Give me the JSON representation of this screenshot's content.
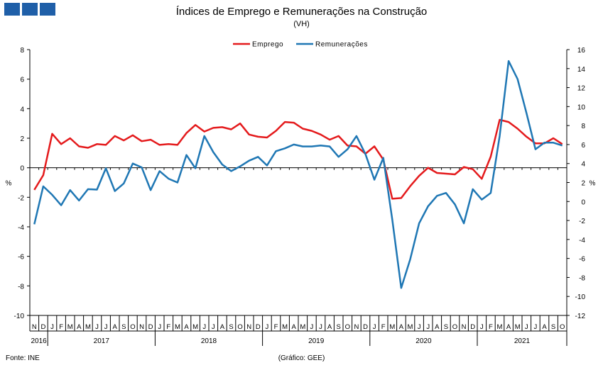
{
  "header": {
    "title": "Índices de Emprego e Remunerações na Construção",
    "subtitle": "(VH)"
  },
  "footer": {
    "source": "Fonte: INE",
    "credit": "(Gráfico: GEE)"
  },
  "colors": {
    "emprego": "#e41a1c",
    "remuneracoes": "#1f77b4",
    "logo": "#1f5fa8"
  },
  "chart_data": {
    "type": "line",
    "legend_position": "top-center",
    "y_left": {
      "label": "%",
      "min": -10,
      "max": 8,
      "ticks": [
        -10,
        -8,
        -6,
        -4,
        -2,
        0,
        2,
        4,
        6,
        8
      ]
    },
    "y_right": {
      "label": "%",
      "min": -12,
      "max": 16,
      "ticks": [
        -12,
        -10,
        -8,
        -6,
        -4,
        -2,
        0,
        2,
        4,
        6,
        8,
        10,
        12,
        14,
        16
      ]
    },
    "months": [
      "N",
      "D",
      "J",
      "F",
      "M",
      "A",
      "M",
      "J",
      "J",
      "A",
      "S",
      "O",
      "N",
      "D",
      "J",
      "F",
      "M",
      "A",
      "M",
      "J",
      "J",
      "A",
      "S",
      "O",
      "N",
      "D",
      "J",
      "F",
      "M",
      "A",
      "M",
      "J",
      "J",
      "A",
      "S",
      "O",
      "N",
      "D",
      "J",
      "F",
      "M",
      "A",
      "M",
      "J",
      "J",
      "A",
      "S",
      "O",
      "N",
      "D",
      "J",
      "F",
      "M",
      "A",
      "M",
      "J",
      "J",
      "A",
      "S",
      "O"
    ],
    "years": [
      {
        "label": "2016",
        "start": 0,
        "end": 1
      },
      {
        "label": "2017",
        "start": 2,
        "end": 13
      },
      {
        "label": "2018",
        "start": 14,
        "end": 25
      },
      {
        "label": "2019",
        "start": 26,
        "end": 37
      },
      {
        "label": "2020",
        "start": 38,
        "end": 49
      },
      {
        "label": "2021",
        "start": 50,
        "end": 59
      }
    ],
    "series": [
      {
        "name": "Emprego",
        "axis": "left",
        "values": [
          -1.5,
          -0.5,
          2.3,
          1.6,
          2.0,
          1.45,
          1.35,
          1.6,
          1.55,
          2.15,
          1.85,
          2.2,
          1.8,
          1.9,
          1.55,
          1.6,
          1.55,
          2.35,
          2.9,
          2.45,
          2.7,
          2.75,
          2.6,
          3.0,
          2.25,
          2.1,
          2.05,
          2.5,
          3.1,
          3.05,
          2.65,
          2.5,
          2.25,
          1.9,
          2.15,
          1.5,
          1.45,
          0.95,
          1.45,
          0.55,
          -2.1,
          -2.05,
          -1.25,
          -0.55,
          0.0,
          -0.35,
          -0.4,
          -0.45,
          0.05,
          -0.1,
          -0.75,
          0.75,
          3.25,
          3.1,
          2.65,
          2.1,
          1.65,
          1.65,
          2.0,
          1.6
        ]
      },
      {
        "name": "Remunerações",
        "axis": "right",
        "values": [
          -2.4,
          1.6,
          0.7,
          -0.4,
          1.2,
          0.1,
          1.3,
          1.25,
          3.5,
          1.1,
          1.9,
          4.0,
          3.6,
          1.2,
          3.2,
          2.4,
          2.0,
          4.9,
          3.5,
          6.9,
          5.2,
          3.9,
          3.2,
          3.7,
          4.3,
          4.7,
          3.8,
          5.3,
          5.6,
          6.0,
          5.8,
          5.8,
          5.9,
          5.8,
          4.7,
          5.5,
          6.9,
          5.0,
          2.3,
          4.6,
          -1.9,
          -9.1,
          -6.1,
          -2.3,
          -0.5,
          0.6,
          0.9,
          -0.3,
          -2.3,
          1.3,
          0.2,
          0.9,
          6.9,
          14.8,
          12.9,
          9.3,
          5.5,
          6.2,
          6.2,
          5.9
        ]
      }
    ]
  }
}
